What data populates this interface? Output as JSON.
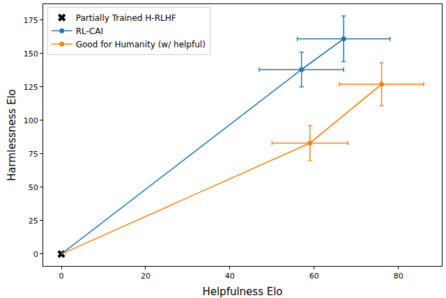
{
  "chart_data": {
    "type": "line",
    "x_label": "Helpfulness Elo",
    "y_label": "Harmlessness Elo",
    "xlim": [
      -4.3,
      90.3
    ],
    "ylim": [
      -8.9,
      186.9
    ],
    "xticks": [
      0,
      20,
      40,
      60,
      80
    ],
    "yticks": [
      0,
      25,
      50,
      75,
      100,
      125,
      150,
      175
    ],
    "grid": false,
    "legend": "upper left",
    "series": [
      {
        "name": "Partially Trained H-RLHF",
        "type": "scatter",
        "color": "#000000",
        "marker": "x",
        "x": [
          0
        ],
        "values": [
          0
        ]
      },
      {
        "name": "RL-CAI",
        "type": "line",
        "color": "#1f77b4",
        "marker": "circle",
        "x": [
          0,
          57,
          67
        ],
        "values": [
          0,
          138,
          161
        ],
        "x_error": [
          null,
          10,
          11
        ],
        "y_error": [
          null,
          13,
          17
        ]
      },
      {
        "name": "Good for Humanity (w/ helpful)",
        "type": "line",
        "color": "#ff7f0e",
        "marker": "circle",
        "x": [
          0,
          59,
          76
        ],
        "values": [
          0,
          83,
          127
        ],
        "x_error": [
          null,
          9,
          10
        ],
        "y_error": [
          null,
          13,
          16
        ]
      }
    ]
  }
}
